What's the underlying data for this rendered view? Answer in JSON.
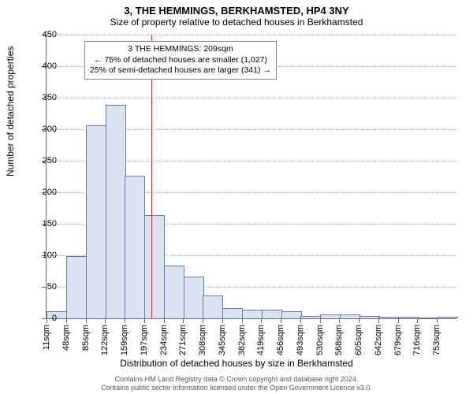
{
  "title": "3, THE HEMMINGS, BERKHAMSTED, HP4 3NY",
  "subtitle": "Size of property relative to detached houses in Berkhamsted",
  "ylabel": "Number of detached properties",
  "xlabel": "Distribution of detached houses by size in Berkhamsted",
  "footer_lines": [
    "Contains HM Land Registry data © Crown copyright and database right 2024.",
    "Contains public sector information licensed under the Open Government Licence v3.0."
  ],
  "annotation": {
    "line1": "3 THE HEMMINGS: 209sqm",
    "line2": "← 75% of detached houses are smaller (1,027)",
    "line3": "25% of semi-detached houses are larger (341) →"
  },
  "chart": {
    "type": "histogram",
    "ylim": [
      0,
      450
    ],
    "ytick_step": 50,
    "bar_fill": "#d9e3f2",
    "bar_stroke": "#6b7a99",
    "grid_color": "#b0b0b0",
    "background_color": "#ffffff",
    "marker_x": 209,
    "marker_color": "#cc3333",
    "x_start": 11,
    "x_bin_width": 37,
    "xtick_labels": [
      "11sqm",
      "48sqm",
      "85sqm",
      "122sqm",
      "159sqm",
      "197sqm",
      "234sqm",
      "271sqm",
      "308sqm",
      "345sqm",
      "382sqm",
      "419sqm",
      "456sqm",
      "493sqm",
      "530sqm",
      "568sqm",
      "605sqm",
      "642sqm",
      "679sqm",
      "716sqm",
      "753sqm"
    ],
    "values": [
      10,
      97,
      305,
      338,
      225,
      163,
      83,
      65,
      35,
      15,
      12,
      13,
      10,
      2,
      5,
      5,
      2,
      1,
      1,
      0,
      1
    ]
  },
  "fonts": {
    "title_fontsize": 13,
    "subtitle_fontsize": 12,
    "axis_label_fontsize": 12,
    "tick_fontsize": 11,
    "annotation_fontsize": 10.5,
    "footer_fontsize": 9
  }
}
